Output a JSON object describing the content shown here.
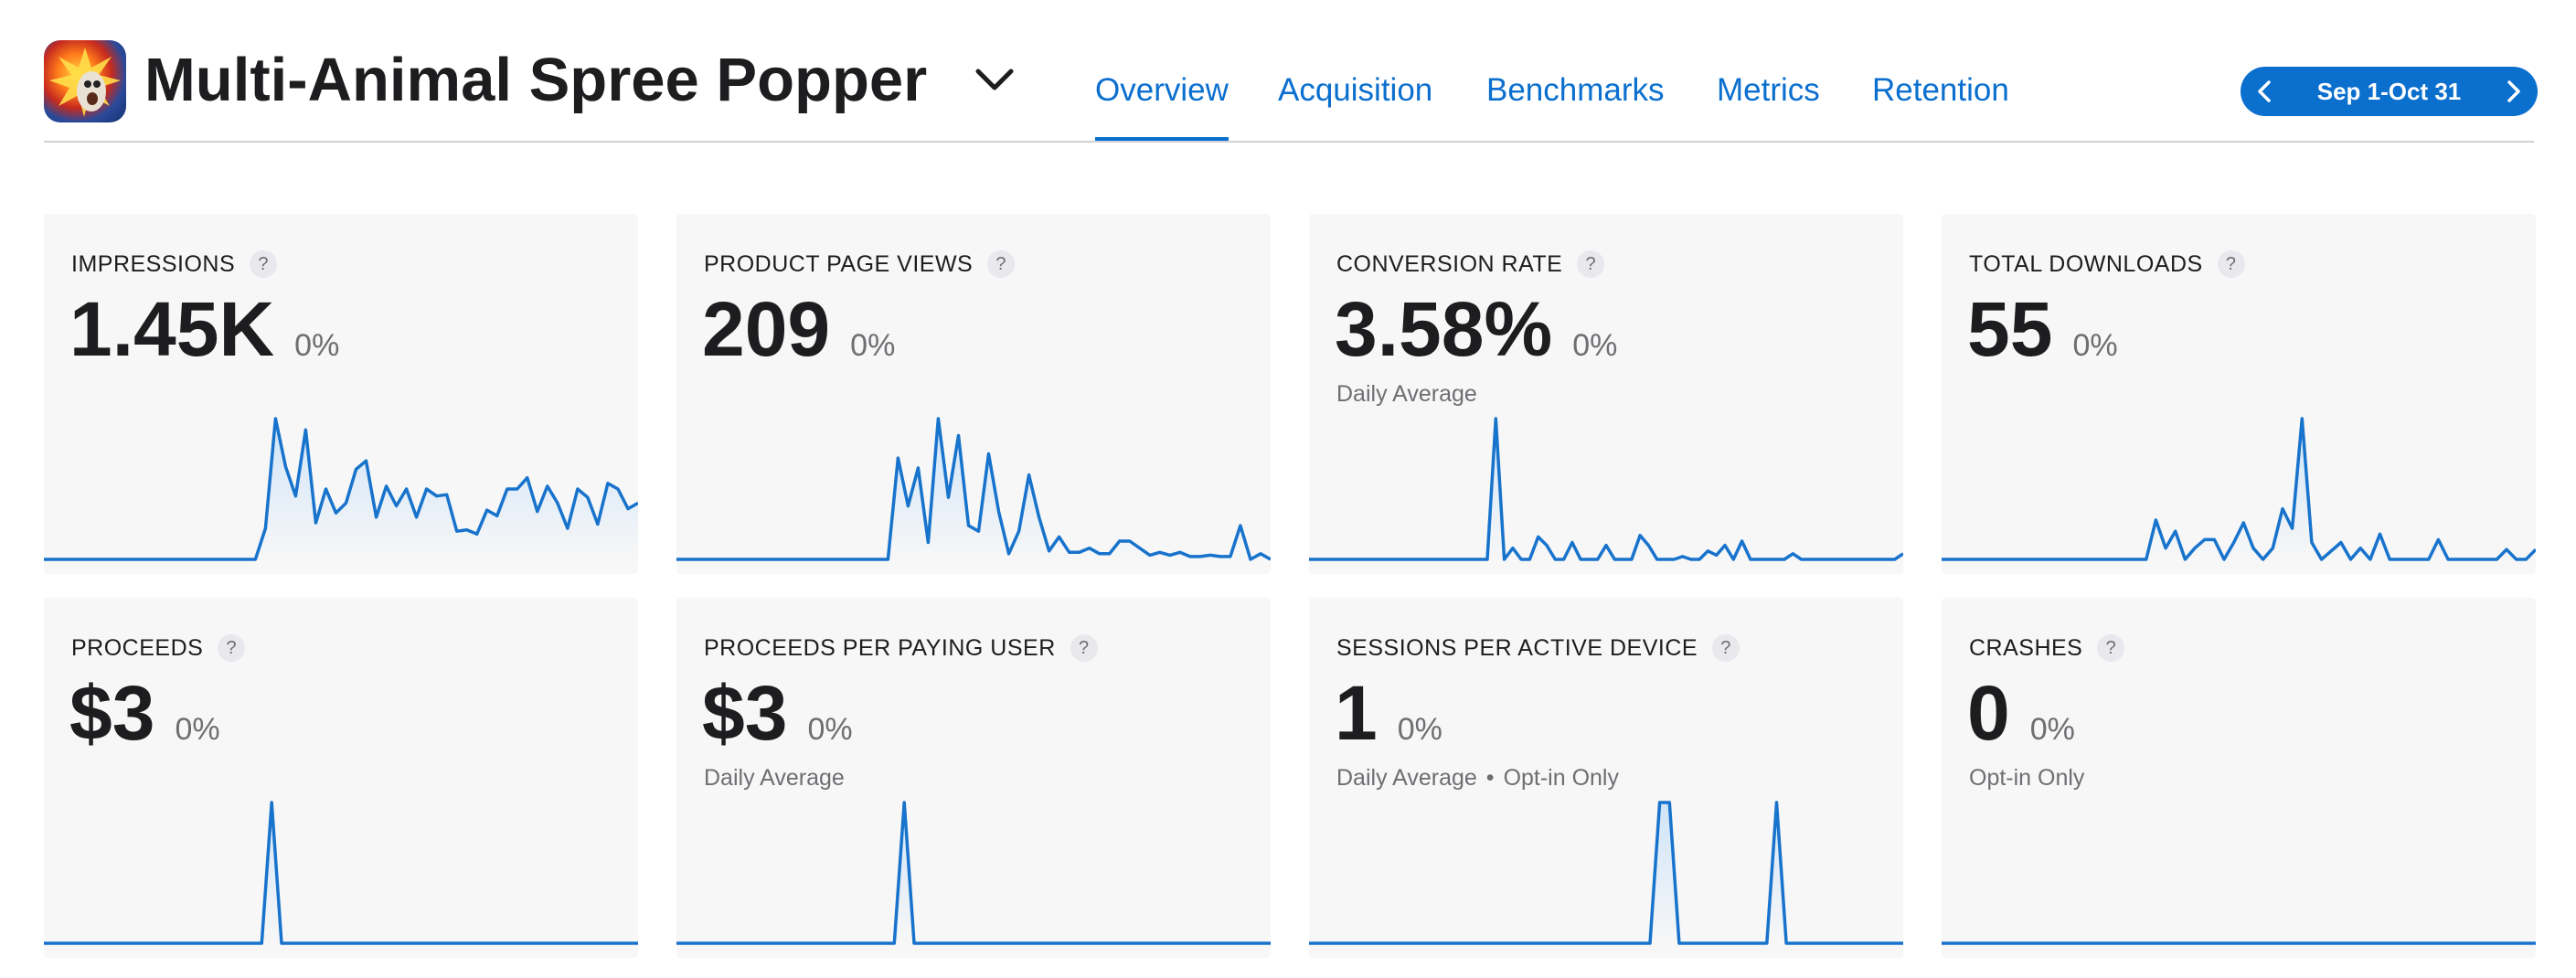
{
  "app": {
    "title": "Multi-Animal Spree Popper"
  },
  "tabs": [
    {
      "label": "Overview",
      "active": true
    },
    {
      "label": "Acquisition",
      "active": false
    },
    {
      "label": "Benchmarks",
      "active": false
    },
    {
      "label": "Metrics",
      "active": false
    },
    {
      "label": "Retention",
      "active": false
    }
  ],
  "date_range": {
    "label": "Sep 1-Oct 31"
  },
  "colors": {
    "accent": "#0a6fce",
    "line": "#1873cc",
    "fill_top": "#cfe4f8",
    "card_bg": "#f7f7f7"
  },
  "cards": [
    {
      "label": "IMPRESSIONS",
      "value": "1.45K",
      "change": "0%",
      "sub": "",
      "sub2": "",
      "series": [
        0,
        0,
        0,
        0,
        0,
        0,
        0,
        0,
        0,
        0,
        0,
        0,
        0,
        0,
        0,
        0,
        0,
        0,
        0,
        0,
        0,
        0,
        22,
        100,
        66,
        45,
        92,
        26,
        50,
        33,
        40,
        64,
        70,
        30,
        52,
        38,
        50,
        30,
        50,
        45,
        46,
        20,
        21,
        18,
        35,
        31,
        50,
        50,
        58,
        34,
        52,
        40,
        22,
        50,
        44,
        25,
        54,
        50,
        36,
        40
      ]
    },
    {
      "label": "PRODUCT PAGE VIEWS",
      "value": "209",
      "change": "0%",
      "sub": "",
      "sub2": "",
      "series": [
        0,
        0,
        0,
        0,
        0,
        0,
        0,
        0,
        0,
        0,
        0,
        0,
        0,
        0,
        0,
        0,
        0,
        0,
        0,
        0,
        0,
        0,
        72,
        38,
        65,
        12,
        100,
        44,
        88,
        24,
        20,
        75,
        34,
        4,
        20,
        60,
        30,
        6,
        16,
        5,
        5,
        8,
        4,
        4,
        13,
        13,
        8,
        3,
        5,
        3,
        5,
        2,
        2,
        3,
        2,
        2,
        24,
        0,
        4,
        0
      ]
    },
    {
      "label": "CONVERSION RATE",
      "value": "3.58%",
      "change": "0%",
      "sub": "Daily Average",
      "sub2": "",
      "series": [
        0,
        0,
        0,
        0,
        0,
        0,
        0,
        0,
        0,
        0,
        0,
        0,
        0,
        0,
        0,
        0,
        0,
        0,
        0,
        0,
        0,
        0,
        100,
        0,
        8,
        0,
        0,
        16,
        10,
        0,
        0,
        12,
        0,
        0,
        0,
        10,
        0,
        0,
        0,
        17,
        10,
        0,
        0,
        0,
        2,
        0,
        0,
        6,
        3,
        10,
        0,
        13,
        0,
        0,
        0,
        0,
        0,
        4,
        0,
        0,
        0,
        0,
        0,
        0,
        0,
        0,
        0,
        0,
        0,
        0,
        4
      ]
    },
    {
      "label": "TOTAL DOWNLOADS",
      "value": "55",
      "change": "0%",
      "sub": "",
      "sub2": "",
      "series": [
        0,
        0,
        0,
        0,
        0,
        0,
        0,
        0,
        0,
        0,
        0,
        0,
        0,
        0,
        0,
        0,
        0,
        0,
        0,
        0,
        0,
        0,
        28,
        8,
        20,
        0,
        8,
        14,
        14,
        0,
        12,
        26,
        8,
        0,
        8,
        36,
        22,
        100,
        12,
        0,
        6,
        12,
        0,
        8,
        0,
        18,
        0,
        0,
        0,
        0,
        0,
        14,
        0,
        0,
        0,
        0,
        0,
        0,
        7,
        0,
        0,
        7
      ]
    },
    {
      "label": "PROCEEDS",
      "value": "$3",
      "change": "0%",
      "sub": "",
      "sub2": "",
      "series": [
        0,
        0,
        0,
        0,
        0,
        0,
        0,
        0,
        0,
        0,
        0,
        0,
        0,
        0,
        0,
        0,
        0,
        0,
        0,
        0,
        0,
        0,
        0,
        100,
        0,
        0,
        0,
        0,
        0,
        0,
        0,
        0,
        0,
        0,
        0,
        0,
        0,
        0,
        0,
        0,
        0,
        0,
        0,
        0,
        0,
        0,
        0,
        0,
        0,
        0,
        0,
        0,
        0,
        0,
        0,
        0,
        0,
        0,
        0,
        0,
        0
      ]
    },
    {
      "label": "PROCEEDS PER PAYING USER",
      "value": "$3",
      "change": "0%",
      "sub": "Daily Average",
      "sub2": "",
      "series": [
        0,
        0,
        0,
        0,
        0,
        0,
        0,
        0,
        0,
        0,
        0,
        0,
        0,
        0,
        0,
        0,
        0,
        0,
        0,
        0,
        0,
        0,
        0,
        100,
        0,
        0,
        0,
        0,
        0,
        0,
        0,
        0,
        0,
        0,
        0,
        0,
        0,
        0,
        0,
        0,
        0,
        0,
        0,
        0,
        0,
        0,
        0,
        0,
        0,
        0,
        0,
        0,
        0,
        0,
        0,
        0,
        0,
        0,
        0,
        0,
        0
      ]
    },
    {
      "label": "SESSIONS PER ACTIVE DEVICE",
      "value": "1",
      "change": "0%",
      "sub": "Daily Average",
      "sub2": "Opt-in Only",
      "series": [
        0,
        0,
        0,
        0,
        0,
        0,
        0,
        0,
        0,
        0,
        0,
        0,
        0,
        0,
        0,
        0,
        0,
        0,
        0,
        0,
        0,
        0,
        0,
        0,
        0,
        0,
        0,
        0,
        0,
        0,
        0,
        0,
        0,
        0,
        0,
        0,
        100,
        100,
        0,
        0,
        0,
        0,
        0,
        0,
        0,
        0,
        0,
        0,
        100,
        0,
        0,
        0,
        0,
        0,
        0,
        0,
        0,
        0,
        0,
        0,
        0,
        0
      ]
    },
    {
      "label": "CRASHES",
      "value": "0",
      "change": "0%",
      "sub": "Opt-in Only",
      "sub2": "",
      "series": [
        0,
        0,
        0,
        0,
        0,
        0,
        0,
        0,
        0,
        0,
        0,
        0,
        0,
        0,
        0,
        0,
        0,
        0,
        0,
        0,
        0,
        0,
        0,
        0,
        0,
        0,
        0,
        0,
        0,
        0,
        0,
        0,
        0,
        0,
        0,
        0,
        0,
        0,
        0,
        0,
        0,
        0,
        0,
        0,
        0,
        0,
        0,
        0,
        0,
        0,
        0,
        0,
        0,
        0,
        0,
        0,
        0,
        0,
        0,
        0,
        0,
        0
      ]
    }
  ]
}
